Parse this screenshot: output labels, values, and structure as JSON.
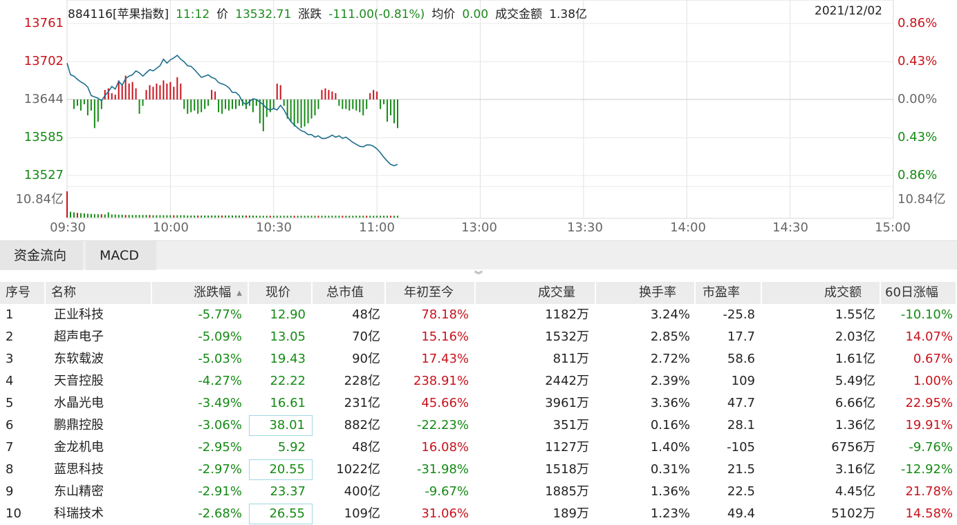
{
  "header": {
    "code": "884116[苹果指数]",
    "time": "11:12",
    "price_label": "价",
    "price": "13532.71",
    "change_label": "涨跌",
    "change": "-111.00(-0.81%)",
    "avg_label": "均价",
    "avg": "0.00",
    "amount_label": "成交金额",
    "amount": "1.38亿",
    "date": "2021/12/02"
  },
  "left_axis": [
    "13761",
    "13702",
    "13644",
    "13585",
    "13527",
    "10.84亿"
  ],
  "right_axis": [
    "0.86%",
    "0.43%",
    "0.00%",
    "0.43%",
    "0.86%",
    "10.84亿"
  ],
  "time_axis": [
    "09:30",
    "10:00",
    "10:30",
    "11:00",
    "13:00",
    "13:30",
    "14:00",
    "14:30",
    "15:00"
  ],
  "colors": {
    "up": "#c8121c",
    "down": "#148a14",
    "line": "#1c6d8c"
  },
  "chart_data": {
    "type": "line",
    "xlabel": "",
    "ylabel": "",
    "ylim": [
      13527,
      13761
    ],
    "baseline": 13644,
    "price_line": [
      [
        0,
        13700
      ],
      [
        1,
        13682
      ],
      [
        2,
        13680
      ],
      [
        3,
        13675
      ],
      [
        4,
        13671
      ],
      [
        5,
        13668
      ],
      [
        6,
        13663
      ],
      [
        7,
        13650
      ],
      [
        8,
        13648
      ],
      [
        9,
        13646
      ],
      [
        10,
        13642
      ],
      [
        11,
        13650
      ],
      [
        12,
        13656
      ],
      [
        13,
        13664
      ],
      [
        14,
        13660
      ],
      [
        15,
        13672
      ],
      [
        16,
        13666
      ],
      [
        17,
        13676
      ],
      [
        18,
        13680
      ],
      [
        19,
        13682
      ],
      [
        20,
        13688
      ],
      [
        21,
        13685
      ],
      [
        22,
        13680
      ],
      [
        23,
        13685
      ],
      [
        24,
        13690
      ],
      [
        25,
        13688
      ],
      [
        26,
        13692
      ],
      [
        27,
        13696
      ],
      [
        28,
        13706
      ],
      [
        29,
        13700
      ],
      [
        30,
        13705
      ],
      [
        31,
        13708
      ],
      [
        32,
        13712
      ],
      [
        33,
        13706
      ],
      [
        34,
        13702
      ],
      [
        35,
        13696
      ],
      [
        36,
        13695
      ],
      [
        37,
        13690
      ],
      [
        38,
        13684
      ],
      [
        39,
        13678
      ],
      [
        40,
        13680
      ],
      [
        41,
        13682
      ],
      [
        42,
        13678
      ],
      [
        43,
        13676
      ],
      [
        44,
        13670
      ],
      [
        45,
        13668
      ],
      [
        46,
        13666
      ],
      [
        47,
        13662
      ],
      [
        48,
        13655
      ],
      [
        49,
        13655
      ],
      [
        50,
        13650
      ],
      [
        51,
        13640
      ],
      [
        52,
        13636
      ],
      [
        53,
        13641
      ],
      [
        54,
        13645
      ],
      [
        55,
        13644
      ],
      [
        56,
        13640
      ],
      [
        57,
        13636
      ],
      [
        58,
        13630
      ],
      [
        59,
        13628
      ],
      [
        60,
        13630
      ],
      [
        61,
        13628
      ],
      [
        62,
        13635
      ],
      [
        63,
        13628
      ],
      [
        64,
        13618
      ],
      [
        65,
        13610
      ],
      [
        66,
        13605
      ],
      [
        67,
        13600
      ],
      [
        68,
        13596
      ],
      [
        69,
        13594
      ],
      [
        70,
        13590
      ],
      [
        71,
        13590
      ],
      [
        72,
        13586
      ],
      [
        73,
        13588
      ],
      [
        74,
        13584
      ],
      [
        75,
        13584
      ],
      [
        76,
        13586
      ],
      [
        77,
        13589
      ],
      [
        78,
        13586
      ],
      [
        79,
        13588
      ],
      [
        80,
        13584
      ],
      [
        81,
        13586
      ],
      [
        82,
        13582
      ],
      [
        83,
        13578
      ],
      [
        84,
        13575
      ],
      [
        85,
        13572
      ],
      [
        86,
        13571
      ],
      [
        87,
        13574
      ],
      [
        88,
        13574
      ],
      [
        89,
        13572
      ],
      [
        90,
        13568
      ],
      [
        91,
        13562
      ],
      [
        92,
        13555
      ],
      [
        93,
        13549
      ],
      [
        94,
        13544
      ],
      [
        95,
        13542
      ],
      [
        96,
        13544
      ]
    ],
    "bars": [
      {
        "x": 2,
        "v": -0.3
      },
      {
        "x": 3,
        "v": -0.2
      },
      {
        "x": 4,
        "v": -0.35
      },
      {
        "x": 5,
        "v": -0.15
      },
      {
        "x": 6,
        "v": -0.5
      },
      {
        "x": 7,
        "v": -0.35
      },
      {
        "x": 8,
        "v": -0.9
      },
      {
        "x": 9,
        "v": -0.7
      },
      {
        "x": 10,
        "v": -0.3
      },
      {
        "x": 11,
        "v": 0.3
      },
      {
        "x": 12,
        "v": 0.35
      },
      {
        "x": 13,
        "v": 0.2
      },
      {
        "x": 14,
        "v": 0.15
      },
      {
        "x": 15,
        "v": 0.6
      },
      {
        "x": 16,
        "v": 0.45
      },
      {
        "x": 17,
        "v": 0.75
      },
      {
        "x": 18,
        "v": 0.5
      },
      {
        "x": 19,
        "v": 0.55
      },
      {
        "x": 20,
        "v": 0.35
      },
      {
        "x": 21,
        "v": -0.45
      },
      {
        "x": 22,
        "v": -0.2
      },
      {
        "x": 23,
        "v": 0.3
      },
      {
        "x": 24,
        "v": 0.45
      },
      {
        "x": 25,
        "v": 0.4
      },
      {
        "x": 26,
        "v": 0.5
      },
      {
        "x": 27,
        "v": 0.45
      },
      {
        "x": 28,
        "v": 0.6
      },
      {
        "x": 29,
        "v": 0.5
      },
      {
        "x": 30,
        "v": 0.55
      },
      {
        "x": 31,
        "v": 0.4
      },
      {
        "x": 32,
        "v": 0.7
      },
      {
        "x": 33,
        "v": 0.5
      },
      {
        "x": 34,
        "v": -0.3
      },
      {
        "x": 35,
        "v": -0.45
      },
      {
        "x": 36,
        "v": -0.4
      },
      {
        "x": 37,
        "v": -0.35
      },
      {
        "x": 38,
        "v": -0.45
      },
      {
        "x": 39,
        "v": -0.4
      },
      {
        "x": 40,
        "v": -0.3
      },
      {
        "x": 41,
        "v": -0.2
      },
      {
        "x": 42,
        "v": 0.3
      },
      {
        "x": 43,
        "v": 0.25
      },
      {
        "x": 44,
        "v": -0.4
      },
      {
        "x": 45,
        "v": -0.45
      },
      {
        "x": 46,
        "v": -0.3
      },
      {
        "x": 47,
        "v": -0.35
      },
      {
        "x": 48,
        "v": -0.3
      },
      {
        "x": 49,
        "v": -0.3
      },
      {
        "x": 50,
        "v": -0.2
      },
      {
        "x": 51,
        "v": -0.2
      },
      {
        "x": 52,
        "v": -0.3
      },
      {
        "x": 53,
        "v": -0.2
      },
      {
        "x": 54,
        "v": -0.4
      },
      {
        "x": 55,
        "v": -0.2
      },
      {
        "x": 56,
        "v": -0.75
      },
      {
        "x": 57,
        "v": -1.0
      },
      {
        "x": 58,
        "v": -0.55
      },
      {
        "x": 59,
        "v": -0.4
      },
      {
        "x": 60,
        "v": -0.3
      },
      {
        "x": 61,
        "v": 0.5
      },
      {
        "x": 62,
        "v": 0.45
      },
      {
        "x": 63,
        "v": -0.2
      },
      {
        "x": 64,
        "v": -0.6
      },
      {
        "x": 65,
        "v": -0.7
      },
      {
        "x": 66,
        "v": -0.85
      },
      {
        "x": 67,
        "v": -0.75
      },
      {
        "x": 68,
        "v": -0.9
      },
      {
        "x": 69,
        "v": -0.85
      },
      {
        "x": 70,
        "v": -0.75
      },
      {
        "x": 71,
        "v": -0.6
      },
      {
        "x": 72,
        "v": -0.5
      },
      {
        "x": 73,
        "v": -0.3
      },
      {
        "x": 74,
        "v": 0.3
      },
      {
        "x": 75,
        "v": 0.35
      },
      {
        "x": 76,
        "v": 0.3
      },
      {
        "x": 77,
        "v": 0.25
      },
      {
        "x": 78,
        "v": 0.2
      },
      {
        "x": 79,
        "v": -0.2
      },
      {
        "x": 80,
        "v": -0.3
      },
      {
        "x": 81,
        "v": -0.3
      },
      {
        "x": 82,
        "v": -0.35
      },
      {
        "x": 83,
        "v": -0.3
      },
      {
        "x": 84,
        "v": -0.35
      },
      {
        "x": 85,
        "v": -0.4
      },
      {
        "x": 86,
        "v": -0.5
      },
      {
        "x": 87,
        "v": -0.3
      },
      {
        "x": 88,
        "v": 0.2
      },
      {
        "x": 89,
        "v": 0.3
      },
      {
        "x": 90,
        "v": 0.25
      },
      {
        "x": 91,
        "v": -0.3
      },
      {
        "x": 92,
        "v": -0.15
      },
      {
        "x": 93,
        "v": -0.7
      },
      {
        "x": 94,
        "v": -0.5
      },
      {
        "x": 95,
        "v": -0.75
      },
      {
        "x": 96,
        "v": -0.9
      }
    ],
    "volume": [
      1.0,
      0.22,
      0.2,
      0.18,
      0.17,
      0.16,
      0.15,
      0.14,
      0.13,
      0.13,
      0.13,
      0.12,
      0.2,
      0.12,
      0.12,
      0.11,
      0.11,
      0.1,
      0.1,
      0.1,
      0.1,
      0.1,
      0.1,
      0.1,
      0.1,
      0.09,
      0.09,
      0.09,
      0.09,
      0.09,
      0.09,
      0.09,
      0.09,
      0.09,
      0.09,
      0.08,
      0.08,
      0.08,
      0.08,
      0.08,
      0.08,
      0.08,
      0.08,
      0.08,
      0.08,
      0.08,
      0.08,
      0.08,
      0.08,
      0.08,
      0.08,
      0.08,
      0.08,
      0.08,
      0.08,
      0.07,
      0.07,
      0.07,
      0.07,
      0.07,
      0.07,
      0.07,
      0.07,
      0.07,
      0.07,
      0.07,
      0.07,
      0.07,
      0.07,
      0.07,
      0.07,
      0.07,
      0.07,
      0.07,
      0.07,
      0.07,
      0.07,
      0.07,
      0.07,
      0.07,
      0.07,
      0.07,
      0.07,
      0.07,
      0.07,
      0.07,
      0.07,
      0.07,
      0.07,
      0.07,
      0.07,
      0.07,
      0.07,
      0.07,
      0.07,
      0.07,
      0.07
    ]
  },
  "tabs": [
    "资金流向",
    "MACD"
  ],
  "expander_glyph": "︾",
  "table": {
    "headers": [
      "序号",
      "名称",
      "涨跌幅",
      "现价",
      "总市值",
      "年初至今",
      "成交量",
      "换手率",
      "市盈率",
      "成交额",
      "60日涨幅"
    ],
    "sort_glyph": "▲",
    "rows": [
      {
        "i": "1",
        "name": "正业科技",
        "chg": "-5.77%",
        "price": "12.90",
        "cap": "48亿",
        "ytd": "78.18%",
        "vol": "1182万",
        "turn": "3.24%",
        "pe": "-25.8",
        "amt": "1.55亿",
        "d60": "-10.10%"
      },
      {
        "i": "2",
        "name": "超声电子",
        "chg": "-5.09%",
        "price": "13.05",
        "cap": "70亿",
        "ytd": "15.16%",
        "vol": "1532万",
        "turn": "2.85%",
        "pe": "17.7",
        "amt": "2.03亿",
        "d60": "14.07%"
      },
      {
        "i": "3",
        "name": "东软载波",
        "chg": "-5.03%",
        "price": "19.43",
        "cap": "90亿",
        "ytd": "17.43%",
        "vol": "811万",
        "turn": "2.72%",
        "pe": "58.6",
        "amt": "1.61亿",
        "d60": "0.67%"
      },
      {
        "i": "4",
        "name": "天音控股",
        "chg": "-4.27%",
        "price": "22.22",
        "cap": "228亿",
        "ytd": "238.91%",
        "vol": "2442万",
        "turn": "2.39%",
        "pe": "109",
        "amt": "5.49亿",
        "d60": "1.00%"
      },
      {
        "i": "5",
        "name": "水晶光电",
        "chg": "-3.49%",
        "price": "16.61",
        "cap": "231亿",
        "ytd": "45.66%",
        "vol": "3961万",
        "turn": "3.36%",
        "pe": "47.7",
        "amt": "6.66亿",
        "d60": "22.95%"
      },
      {
        "i": "6",
        "name": "鹏鼎控股",
        "chg": "-3.06%",
        "price": "38.01",
        "cap": "882亿",
        "ytd": "-22.23%",
        "vol": "351万",
        "turn": "0.16%",
        "pe": "28.1",
        "amt": "1.36亿",
        "d60": "19.91%"
      },
      {
        "i": "7",
        "name": "金龙机电",
        "chg": "-2.95%",
        "price": "5.92",
        "cap": "48亿",
        "ytd": "16.08%",
        "vol": "1127万",
        "turn": "1.40%",
        "pe": "-105",
        "amt": "6756万",
        "d60": "-9.76%"
      },
      {
        "i": "8",
        "name": "蓝思科技",
        "chg": "-2.97%",
        "price": "20.55",
        "cap": "1022亿",
        "ytd": "-31.98%",
        "vol": "1518万",
        "turn": "0.31%",
        "pe": "21.5",
        "amt": "3.16亿",
        "d60": "-12.92%"
      },
      {
        "i": "9",
        "name": "东山精密",
        "chg": "-2.91%",
        "price": "23.37",
        "cap": "400亿",
        "ytd": "-9.67%",
        "vol": "1885万",
        "turn": "1.36%",
        "pe": "22.5",
        "amt": "4.45亿",
        "d60": "21.78%"
      },
      {
        "i": "10",
        "name": "科瑞技术",
        "chg": "-2.68%",
        "price": "26.55",
        "cap": "109亿",
        "ytd": "31.06%",
        "vol": "189万",
        "turn": "1.23%",
        "pe": "49.4",
        "amt": "5102万",
        "d60": "14.58%"
      }
    ]
  }
}
